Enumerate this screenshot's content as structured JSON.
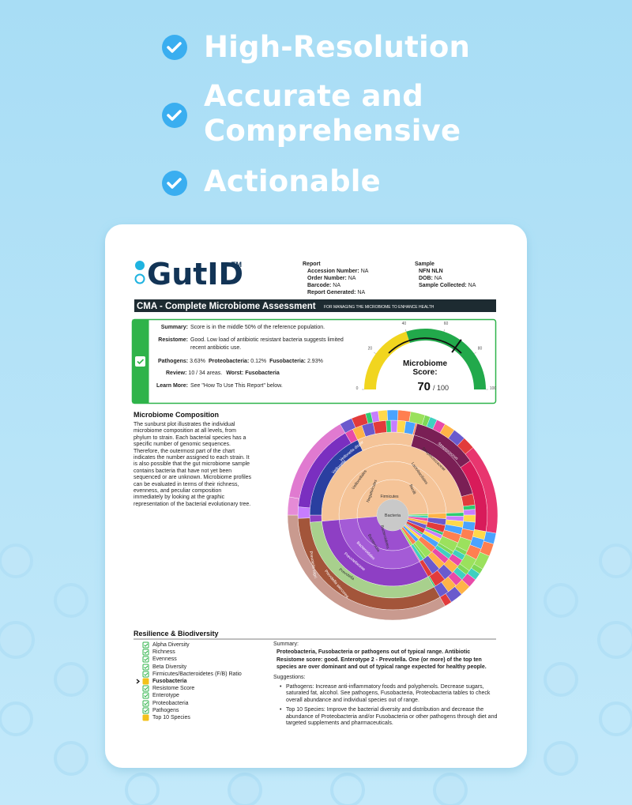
{
  "features": [
    "High-Resolution",
    "Accurate and Comprehensive",
    "Actionable"
  ],
  "report": {
    "logo": "GutID",
    "logo_mark": "TM",
    "report_info": {
      "heading": "Report",
      "fields": [
        {
          "label": "Accession Number:",
          "value": "NA"
        },
        {
          "label": "Order Number:",
          "value": "NA"
        },
        {
          "label": "Barcode:",
          "value": "NA"
        },
        {
          "label": "Report Generated:",
          "value": "NA"
        }
      ]
    },
    "sample_info": {
      "heading": "Sample",
      "name": "NFN NLN",
      "fields": [
        {
          "label": "DOB:",
          "value": "NA"
        },
        {
          "label": "Sample Collected:",
          "value": "NA"
        }
      ]
    },
    "banner": {
      "title": "CMA - Complete Microbiome Assessment",
      "subtitle": "FOR MANAGING THE MICROBIOME TO ENHANCE HEALTH"
    },
    "summary": {
      "summary_label": "Summary:",
      "summary_value": "Score is in the middle 50% of the reference population.",
      "resistome_label": "Resistome:",
      "resistome_value": "Good. Low load of antibiotic resistant bacteria suggests limited recent antibiotic use.",
      "levels": [
        {
          "label": "Pathogens:",
          "value": "3.63%"
        },
        {
          "label": "Proteobacteria:",
          "value": "0.12%"
        },
        {
          "label": "Fusobacteria:",
          "value": "2.93%"
        }
      ],
      "review_label": "Review:",
      "review_value": "10 / 34 areas.",
      "worst_label": "Worst:",
      "worst_value": "Fusobacteria",
      "learn_label": "Learn More:",
      "learn_value": "See \"How To Use This Report\" below."
    },
    "gauge": {
      "title": "Microbiome Score:",
      "score": 70,
      "out_of": "/ 100",
      "range": [
        0,
        100
      ],
      "ticks": [
        0,
        20,
        40,
        60,
        80,
        100
      ],
      "bands": [
        {
          "from": 0,
          "to": 40,
          "color": "#f1d51f"
        },
        {
          "from": 40,
          "to": 100,
          "color": "#22a94b"
        }
      ],
      "reference": [
        25,
        75
      ]
    },
    "composition": {
      "title": "Microbiome Composition",
      "text": "The sunburst plot illustrates the individual microbiome composition at all levels, from phylum to strain. Each bacterial species has a specific number of genomic sequences. Therefore, the outermost part of the chart indicates the number assigned to each strain. It is also possible that the gut microbiome sample contains bacteria that have not yet been sequenced or are unknown. Microbiome profiles can be evaluated in terms of their richness, evenness, and peculiar composition immediately by looking at the graphic representation of the bacterial evolutionary tree."
    },
    "sunburst": {
      "center": "Bacteria",
      "labels": [
        "Firmicutes",
        "Bacteroidetes",
        "Bacteroidia",
        "Bacteroidales",
        "Prevotellaceae",
        "Prevotella",
        "Negativicutes",
        "Veillonellales",
        "Veillonella",
        "Veillonella dispar",
        "Bacilli",
        "Lactobacillales",
        "Streptococcaceae",
        "Streptococcus",
        "Prevotella copri",
        "Prevotella stercorea"
      ]
    },
    "resilience": {
      "title": "Resilience & Biodiversity",
      "items": [
        {
          "label": "Alpha Diversity",
          "status": "ok"
        },
        {
          "label": "Richness",
          "status": "ok"
        },
        {
          "label": "Evenness",
          "status": "ok"
        },
        {
          "label": "Beta Diversity",
          "status": "ok"
        },
        {
          "label": "Firmicutes/Bacteroidetes (F/B) Ratio",
          "status": "ok"
        },
        {
          "label": "Fusobacteria",
          "status": "warn",
          "selected": true
        },
        {
          "label": "Resistome Score",
          "status": "ok"
        },
        {
          "label": "Enterotype",
          "status": "ok"
        },
        {
          "label": "Proteobacteria",
          "status": "ok"
        },
        {
          "label": "Pathogens",
          "status": "ok"
        },
        {
          "label": "Top 10 Species",
          "status": "warn"
        }
      ],
      "summary_heading": "Summary:",
      "summary": "Proteobacteria, Fusobacteria or pathogens out of typical range. Antibiotic Resistome score: good. Enterotype 2 - Prevotella. One (or more) of the top ten species are over dominant and out of typical range expected for healthy people.",
      "suggestions_heading": "Suggestions:",
      "suggestions": [
        "Pathogens: Increase anti-inflammatory foods and polyphenols. Decrease sugars, saturated fat, alcohol. See pathogens, Fusobacteria, Proteobacteria tables to check overall abundance and individual species out of range.",
        "Top 10 Species: Improve the bacterial diversity and distribution and decrease the abundance of Proteobacteria and/or Fusobacteria or other pathogens through diet and targeted supplements and pharmaceuticals."
      ]
    }
  }
}
